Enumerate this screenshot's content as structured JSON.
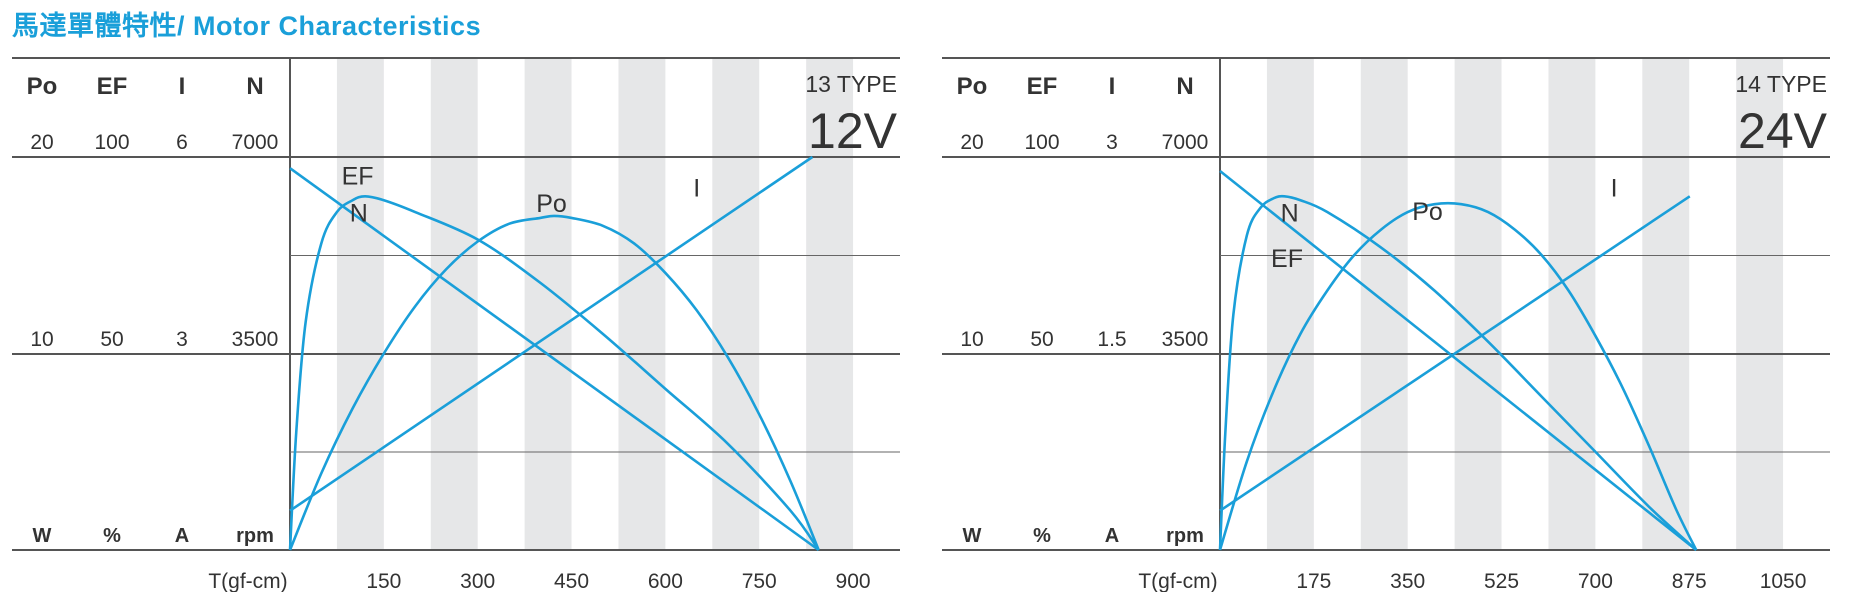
{
  "page": {
    "title": "馬達單體特性/ Motor Characteristics"
  },
  "chart_data": [
    {
      "type": "line",
      "model": "13 TYPE",
      "voltage": "12V",
      "headers": {
        "power": "Po",
        "efficiency": "EF",
        "current": "I",
        "speed": "N"
      },
      "scale_max": {
        "power": "20",
        "efficiency": "100",
        "current": "6",
        "speed": "7000"
      },
      "scale_mid": {
        "power": "10",
        "efficiency": "50",
        "current": "3",
        "speed": "3500"
      },
      "units": {
        "power": "W",
        "efficiency": "%",
        "current": "A",
        "speed": "rpm"
      },
      "xlabel": "T(gf-cm)",
      "x_ticks": [
        "150",
        "300",
        "450",
        "600",
        "750",
        "900"
      ],
      "xlim": [
        0,
        975
      ],
      "grid": true,
      "axis_max": {
        "power": 20,
        "efficiency": 100,
        "current": 6,
        "speed": 7000
      },
      "series": [
        {
          "name": "N",
          "axis": "speed",
          "color": "#1a9fd9",
          "x": [
            0,
            845
          ],
          "y": [
            6800,
            0
          ]
        },
        {
          "name": "I",
          "axis": "current",
          "color": "#1a9fd9",
          "x": [
            0,
            835
          ],
          "y": [
            0.6,
            6.0
          ]
        },
        {
          "name": "Po",
          "axis": "power",
          "color": "#1a9fd9",
          "x": [
            0,
            50,
            100,
            150,
            200,
            250,
            300,
            350,
            400,
            422,
            450,
            500,
            550,
            600,
            650,
            700,
            750,
            800,
            845
          ],
          "y": [
            0,
            3.9,
            7.2,
            10.0,
            12.4,
            14.3,
            15.7,
            16.6,
            16.9,
            17.0,
            16.9,
            16.5,
            15.6,
            14.1,
            12.2,
            9.8,
            6.9,
            3.5,
            0
          ]
        },
        {
          "name": "EF",
          "axis": "efficiency",
          "color": "#1a9fd9",
          "x": [
            0,
            10,
            25,
            50,
            75,
            100,
            120,
            150,
            200,
            300,
            400,
            500,
            600,
            700,
            800,
            845
          ],
          "y": [
            0,
            30,
            58,
            78,
            86,
            89,
            90,
            89,
            86,
            79,
            68,
            55,
            41,
            27,
            10,
            0
          ]
        }
      ],
      "curve_labels": [
        {
          "text": "N",
          "x": 110,
          "value": 5850,
          "axis": "speed"
        },
        {
          "text": "Po",
          "x": 418,
          "value": 17.2,
          "axis": "power"
        },
        {
          "text": "I",
          "x": 650,
          "value": 5.4,
          "axis": "current"
        },
        {
          "text": "EF",
          "x": 108,
          "value": 93,
          "axis": "efficiency"
        }
      ]
    },
    {
      "type": "line",
      "model": "14 TYPE",
      "voltage": "24V",
      "headers": {
        "power": "Po",
        "efficiency": "EF",
        "current": "I",
        "speed": "N"
      },
      "scale_max": {
        "power": "20",
        "efficiency": "100",
        "current": "3",
        "speed": "7000"
      },
      "scale_mid": {
        "power": "10",
        "efficiency": "50",
        "current": "1.5",
        "speed": "3500"
      },
      "units": {
        "power": "W",
        "efficiency": "%",
        "current": "A",
        "speed": "rpm"
      },
      "xlabel": "T(gf-cm)",
      "x_ticks": [
        "175",
        "350",
        "525",
        "700",
        "875",
        "1050"
      ],
      "xlim": [
        0,
        1137.5
      ],
      "grid": true,
      "axis_max": {
        "power": 20,
        "efficiency": 100,
        "current": 3,
        "speed": 7000
      },
      "series": [
        {
          "name": "N",
          "axis": "speed",
          "color": "#1a9fd9",
          "x": [
            0,
            888
          ],
          "y": [
            6750,
            0
          ]
        },
        {
          "name": "I",
          "axis": "current",
          "color": "#1a9fd9",
          "x": [
            0,
            876
          ],
          "y": [
            0.3,
            2.7
          ]
        },
        {
          "name": "Po",
          "axis": "power",
          "color": "#1a9fd9",
          "x": [
            0,
            50,
            100,
            150,
            200,
            250,
            300,
            350,
            400,
            450,
            500,
            550,
            600,
            650,
            700,
            750,
            800,
            850,
            888
          ],
          "y": [
            0,
            4.5,
            8.1,
            11.0,
            13.2,
            15.0,
            16.3,
            17.2,
            17.6,
            17.6,
            17.2,
            16.3,
            15.0,
            13.2,
            10.9,
            8.3,
            5.3,
            2.1,
            0
          ]
        },
        {
          "name": "EF",
          "axis": "efficiency",
          "color": "#1a9fd9",
          "x": [
            0,
            10,
            25,
            50,
            75,
            100,
            120,
            150,
            200,
            300,
            400,
            500,
            600,
            700,
            800,
            888
          ],
          "y": [
            0,
            30,
            60,
            80,
            87,
            89.5,
            90,
            89,
            86,
            77,
            66,
            53,
            39,
            25,
            11,
            0
          ]
        }
      ],
      "curve_labels": [
        {
          "text": "N",
          "x": 130,
          "value": 5850,
          "axis": "speed"
        },
        {
          "text": "Po",
          "x": 387,
          "value": 16.8,
          "axis": "power"
        },
        {
          "text": "I",
          "x": 735,
          "value": 2.7,
          "axis": "current"
        },
        {
          "text": "EF",
          "x": 125,
          "value": 72,
          "axis": "efficiency"
        }
      ]
    }
  ]
}
